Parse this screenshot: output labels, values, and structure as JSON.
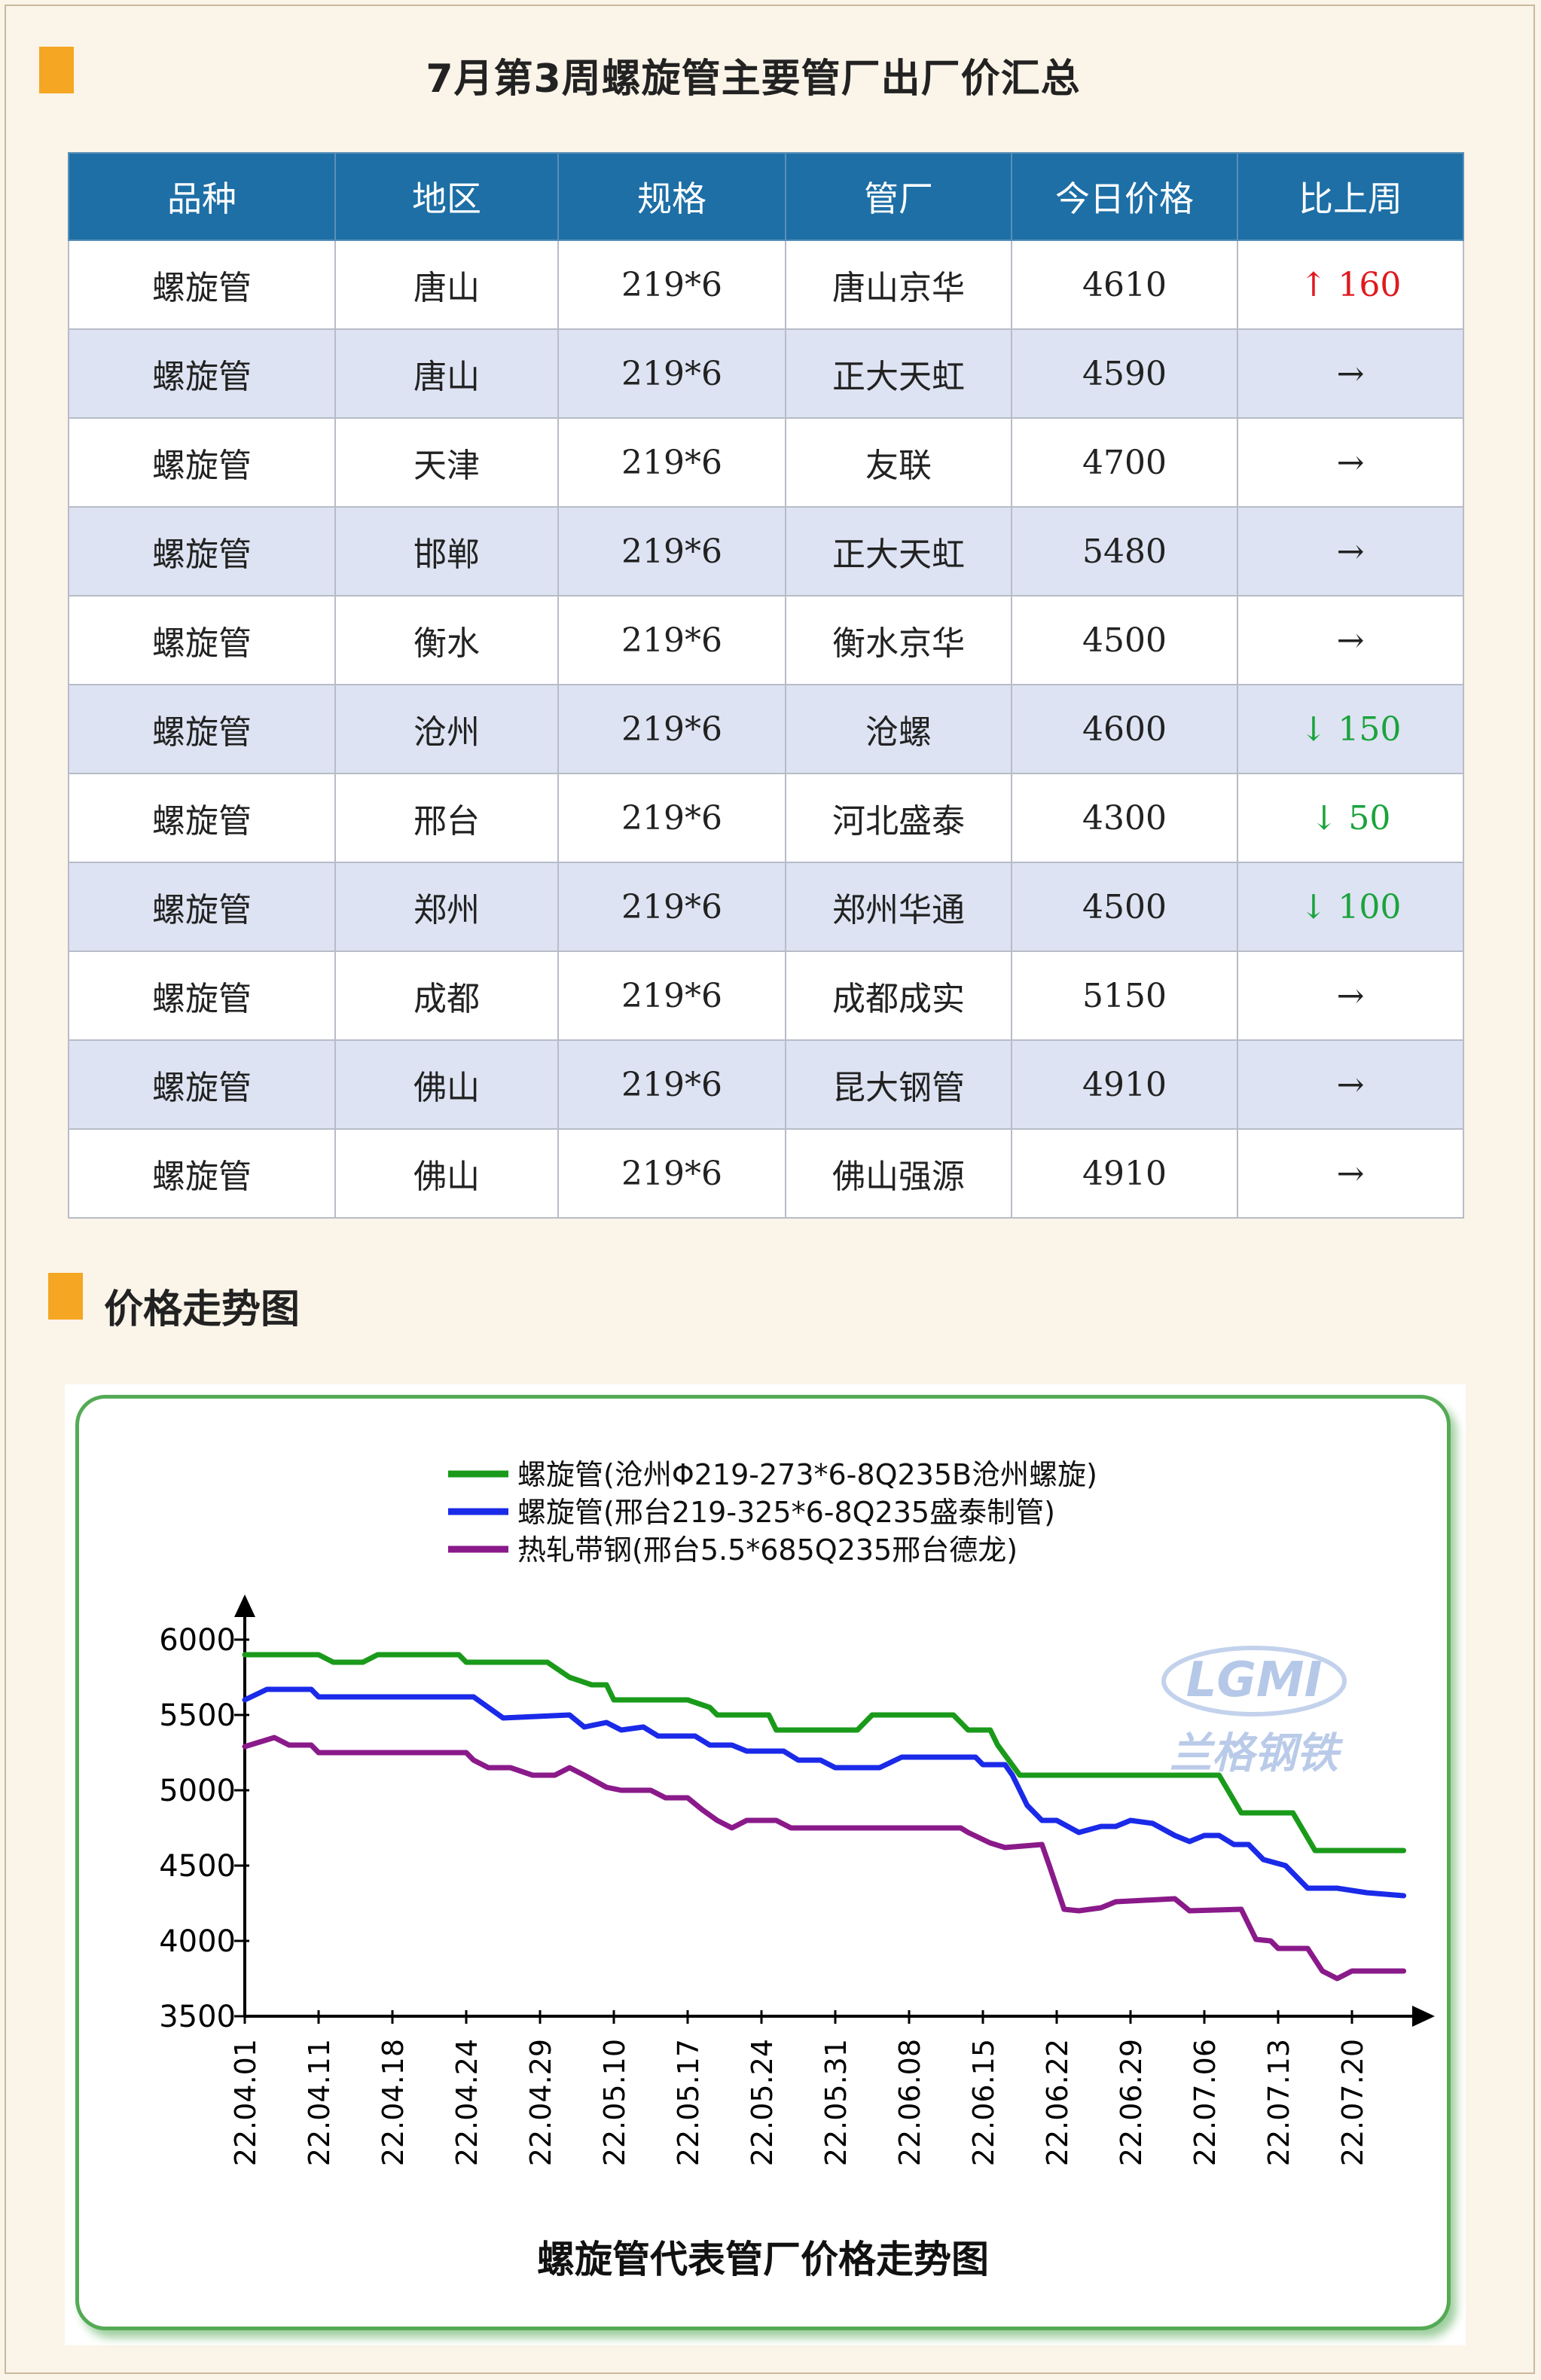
{
  "header": {
    "title": "7月第3周螺旋管主要管厂出厂价汇总"
  },
  "table": {
    "headers": [
      "品种",
      "地区",
      "规格",
      "管厂",
      "今日价格",
      "比上周"
    ],
    "rows": [
      [
        "螺旋管",
        "唐山",
        "219*6",
        "唐山京华",
        "4610",
        "↑ 160"
      ],
      [
        "螺旋管",
        "唐山",
        "219*6",
        "正大天虹",
        "4590",
        "→"
      ],
      [
        "螺旋管",
        "天津",
        "219*6",
        "友联",
        "4700",
        "→"
      ],
      [
        "螺旋管",
        "邯郸",
        "219*6",
        "正大天虹",
        "5480",
        "→"
      ],
      [
        "螺旋管",
        "衡水",
        "219*6",
        "衡水京华",
        "4500",
        "→"
      ],
      [
        "螺旋管",
        "沧州",
        "219*6",
        "沧螺",
        "4600",
        "↓ 150"
      ],
      [
        "螺旋管",
        "邢台",
        "219*6",
        "河北盛泰",
        "4300",
        "↓ 50"
      ],
      [
        "螺旋管",
        "郑州",
        "219*6",
        "郑州华通",
        "4500",
        "↓ 100"
      ],
      [
        "螺旋管",
        "成都",
        "219*6",
        "成都成实",
        "5150",
        "→"
      ],
      [
        "螺旋管",
        "佛山",
        "219*6",
        "昆大钢管",
        "4910",
        "→"
      ],
      [
        "螺旋管",
        "佛山",
        "219*6",
        "佛山强源",
        "4910",
        "→"
      ]
    ],
    "change_directions": [
      "up",
      "flat",
      "flat",
      "flat",
      "flat",
      "down",
      "down",
      "down",
      "flat",
      "flat",
      "flat"
    ],
    "colors": {
      "up": "#e0191e",
      "down": "#1aa33c",
      "header_bg": "#1d6fa6",
      "alt_row_bg": "#dde3f2"
    }
  },
  "section2": {
    "title": "价格走势图"
  },
  "watermark": {
    "logo_text": "LGMI",
    "brand_text": "兰格钢铁"
  },
  "chart_data": {
    "type": "line",
    "title": "螺旋管代表管厂价格走势图",
    "xlabel": "",
    "ylabel": "",
    "ylim": [
      3500,
      6000
    ],
    "yticks": [
      3500,
      4000,
      4500,
      5000,
      5500,
      6000
    ],
    "grid": false,
    "legend_position": "top-center",
    "x": [
      "22.04.01",
      "22.04.11",
      "22.04.18",
      "22.04.24",
      "22.04.29",
      "22.05.10",
      "22.05.17",
      "22.05.24",
      "22.05.31",
      "22.06.08",
      "22.06.15",
      "22.06.22",
      "22.06.29",
      "22.07.06",
      "22.07.13",
      "22.07.20"
    ],
    "series": [
      {
        "name": "螺旋管(沧州Φ219-273*6-8Q235B沧州螺旋)",
        "color": "#1a9a1a",
        "points": [
          [
            0,
            5900
          ],
          [
            1,
            5900
          ],
          [
            1.2,
            5850
          ],
          [
            1.6,
            5850
          ],
          [
            1.8,
            5900
          ],
          [
            2.9,
            5900
          ],
          [
            3,
            5850
          ],
          [
            4.1,
            5850
          ],
          [
            4.4,
            5750
          ],
          [
            4.7,
            5700
          ],
          [
            4.9,
            5700
          ],
          [
            5,
            5600
          ],
          [
            6,
            5600
          ],
          [
            6.3,
            5550
          ],
          [
            6.4,
            5500
          ],
          [
            7.1,
            5500
          ],
          [
            7.2,
            5400
          ],
          [
            8.3,
            5400
          ],
          [
            8.5,
            5500
          ],
          [
            9.6,
            5500
          ],
          [
            9.8,
            5400
          ],
          [
            10.1,
            5400
          ],
          [
            10.2,
            5300
          ],
          [
            10.5,
            5100
          ],
          [
            13.2,
            5100
          ],
          [
            13.5,
            4850
          ],
          [
            14.2,
            4850
          ],
          [
            14.5,
            4600
          ],
          [
            15.7,
            4600
          ]
        ]
      },
      {
        "name": "螺旋管(邢台219-325*6-8Q235盛泰制管)",
        "color": "#1a2ae8",
        "points": [
          [
            0,
            5600
          ],
          [
            0.3,
            5670
          ],
          [
            0.9,
            5670
          ],
          [
            1,
            5620
          ],
          [
            3.1,
            5620
          ],
          [
            3.5,
            5480
          ],
          [
            4.4,
            5500
          ],
          [
            4.6,
            5420
          ],
          [
            4.9,
            5450
          ],
          [
            5.1,
            5400
          ],
          [
            5.4,
            5420
          ],
          [
            5.6,
            5360
          ],
          [
            6.1,
            5360
          ],
          [
            6.3,
            5300
          ],
          [
            6.6,
            5300
          ],
          [
            6.8,
            5260
          ],
          [
            7.3,
            5260
          ],
          [
            7.5,
            5200
          ],
          [
            7.8,
            5200
          ],
          [
            8,
            5150
          ],
          [
            8.6,
            5150
          ],
          [
            8.9,
            5220
          ],
          [
            9.9,
            5220
          ],
          [
            10,
            5170
          ],
          [
            10.3,
            5170
          ],
          [
            10.4,
            5100
          ],
          [
            10.6,
            4900
          ],
          [
            10.8,
            4800
          ],
          [
            11,
            4800
          ],
          [
            11.3,
            4720
          ],
          [
            11.6,
            4760
          ],
          [
            11.8,
            4760
          ],
          [
            12,
            4800
          ],
          [
            12.3,
            4780
          ],
          [
            12.6,
            4700
          ],
          [
            12.8,
            4660
          ],
          [
            13,
            4700
          ],
          [
            13.2,
            4700
          ],
          [
            13.4,
            4640
          ],
          [
            13.6,
            4640
          ],
          [
            13.8,
            4540
          ],
          [
            14.1,
            4500
          ],
          [
            14.4,
            4350
          ],
          [
            14.8,
            4350
          ],
          [
            15.2,
            4320
          ],
          [
            15.7,
            4300
          ]
        ]
      },
      {
        "name": "热轧带钢(邢台5.5*685Q235邢台德龙)",
        "color": "#8a1a8a",
        "points": [
          [
            0,
            5290
          ],
          [
            0.4,
            5350
          ],
          [
            0.6,
            5300
          ],
          [
            0.9,
            5300
          ],
          [
            1,
            5250
          ],
          [
            3,
            5250
          ],
          [
            3.1,
            5200
          ],
          [
            3.3,
            5150
          ],
          [
            3.6,
            5150
          ],
          [
            3.9,
            5100
          ],
          [
            4.2,
            5100
          ],
          [
            4.4,
            5150
          ],
          [
            4.6,
            5100
          ],
          [
            4.9,
            5020
          ],
          [
            5.1,
            5000
          ],
          [
            5.5,
            5000
          ],
          [
            5.7,
            4950
          ],
          [
            6,
            4950
          ],
          [
            6.2,
            4870
          ],
          [
            6.4,
            4800
          ],
          [
            6.6,
            4750
          ],
          [
            6.8,
            4800
          ],
          [
            7.2,
            4800
          ],
          [
            7.4,
            4750
          ],
          [
            9.7,
            4750
          ],
          [
            9.8,
            4720
          ],
          [
            10.1,
            4650
          ],
          [
            10.3,
            4620
          ],
          [
            10.8,
            4640
          ],
          [
            10.9,
            4500
          ],
          [
            11.1,
            4210
          ],
          [
            11.3,
            4200
          ],
          [
            11.6,
            4220
          ],
          [
            11.8,
            4260
          ],
          [
            12.6,
            4280
          ],
          [
            12.8,
            4200
          ],
          [
            13.5,
            4210
          ],
          [
            13.7,
            4010
          ],
          [
            13.9,
            4000
          ],
          [
            14,
            3950
          ],
          [
            14.4,
            3950
          ],
          [
            14.6,
            3800
          ],
          [
            14.8,
            3750
          ],
          [
            15,
            3800
          ],
          [
            15.7,
            3800
          ]
        ]
      }
    ]
  }
}
